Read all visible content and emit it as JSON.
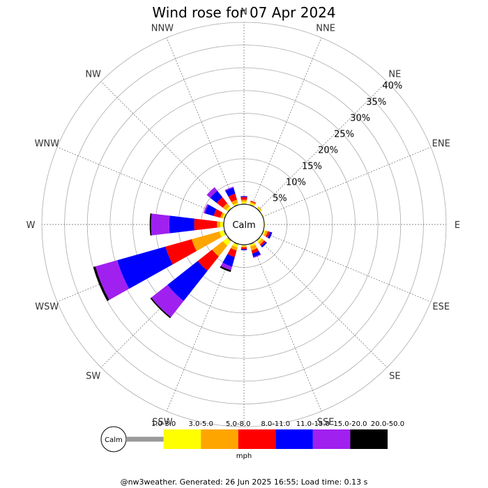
{
  "chart_data": {
    "type": "wind-rose",
    "title": "Wind rose for 07 Apr 2024",
    "directions": [
      "N",
      "NNE",
      "NE",
      "ENE",
      "E",
      "ESE",
      "SE",
      "SSE",
      "S",
      "SSW",
      "SW",
      "WSW",
      "W",
      "WNW",
      "NW",
      "NNW"
    ],
    "radial_ticks": [
      "5%",
      "10%",
      "15%",
      "20%",
      "25%",
      "30%",
      "35%",
      "40%"
    ],
    "radial_max_percent": 40,
    "calm_label": "Calm",
    "speed_unit": "mph",
    "speed_bins": [
      {
        "label": "1.0-3.0",
        "color": "#999999"
      },
      {
        "label": "3.0-5.0",
        "color": "#ffff00"
      },
      {
        "label": "5.0-8.0",
        "color": "#ffa500"
      },
      {
        "label": "8.0-11.0",
        "color": "#ff0000"
      },
      {
        "label": "11.0-15.0",
        "color": "#0000ff"
      },
      {
        "label": "15.0-20.0",
        "color": "#a020f0"
      },
      {
        "label": "20.0-50.0",
        "color": "#000000"
      }
    ],
    "series_note": "cumulative percent per direction, one value per speed bin",
    "frequencies": {
      "N": [
        0.2,
        0.6,
        1.0,
        1.6,
        1.8,
        1.8,
        1.8
      ],
      "NNE": [
        0.2,
        0.5,
        0.8,
        1.0,
        1.0,
        1.0,
        1.0
      ],
      "NE": [
        0.2,
        0.4,
        0.6,
        0.6,
        0.6,
        0.6,
        0.6
      ],
      "ENE": [
        0.1,
        0.2,
        0.2,
        0.2,
        0.2,
        0.2,
        0.2
      ],
      "E": [
        0.1,
        0.2,
        0.2,
        0.2,
        0.2,
        0.2,
        0.2
      ],
      "ESE": [
        0.2,
        0.5,
        1.0,
        1.5,
        2.0,
        2.0,
        2.0
      ],
      "SE": [
        0.2,
        0.6,
        1.2,
        1.6,
        2.0,
        2.0,
        2.0
      ],
      "SSE": [
        0.2,
        0.6,
        1.5,
        2.2,
        3.0,
        3.2,
        3.2
      ],
      "S": [
        0.2,
        0.4,
        0.6,
        1.0,
        1.2,
        1.2,
        1.2
      ],
      "SSW": [
        0.2,
        0.8,
        1.5,
        3.0,
        5.2,
        6.0,
        6.4
      ],
      "SW": [
        0.3,
        1.5,
        4.5,
        8.5,
        17.0,
        21.5,
        21.8
      ],
      "WSW": [
        0.3,
        1.2,
        7.5,
        13.5,
        24.5,
        29.5,
        30.0
      ],
      "W": [
        0.2,
        0.8,
        1.5,
        6.5,
        12.0,
        16.0,
        16.3
      ],
      "WNW": [
        0.2,
        0.5,
        1.0,
        2.5,
        4.5,
        4.8,
        4.8
      ],
      "NW": [
        0.2,
        0.6,
        1.5,
        3.2,
        5.0,
        6.0,
        6.0
      ],
      "NNW": [
        0.2,
        0.5,
        1.2,
        2.6,
        4.0,
        4.2,
        4.2
      ]
    }
  },
  "footer": "@nw3weather. Generated: 26 Jun 2025 16:55; Load time: 0.13 s"
}
